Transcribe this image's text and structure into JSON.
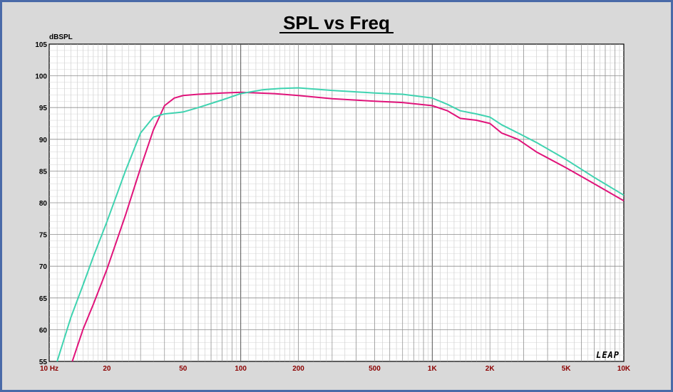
{
  "chart_data": {
    "type": "line",
    "title": "SPL vs Freq",
    "ylabel": "dBSPL",
    "xlabel": "",
    "x_scale": "log",
    "xlim": [
      10,
      10000
    ],
    "ylim": [
      55,
      105
    ],
    "grid": true,
    "y_ticks": [
      55,
      60,
      65,
      70,
      75,
      80,
      85,
      90,
      95,
      100,
      105
    ],
    "x_ticks": [
      {
        "value": 10,
        "label": "10 Hz"
      },
      {
        "value": 20,
        "label": "20"
      },
      {
        "value": 50,
        "label": "50"
      },
      {
        "value": 100,
        "label": "100"
      },
      {
        "value": 200,
        "label": "200"
      },
      {
        "value": 500,
        "label": "500"
      },
      {
        "value": 1000,
        "label": "1K"
      },
      {
        "value": 2000,
        "label": "2K"
      },
      {
        "value": 5000,
        "label": "5K"
      },
      {
        "value": 10000,
        "label": "10K"
      }
    ],
    "logo_text": "LEAP",
    "series": [
      {
        "color": "#e0137a",
        "x": [
          13.2,
          15,
          17,
          20,
          25,
          30,
          35,
          40,
          45,
          50,
          60,
          80,
          100,
          150,
          200,
          300,
          500,
          700,
          1000,
          1200,
          1400,
          1700,
          2000,
          2300,
          2800,
          3500,
          5000,
          7000,
          10000
        ],
        "y": [
          55,
          60,
          64,
          69.5,
          78,
          85.5,
          91.5,
          95.3,
          96.5,
          96.9,
          97.1,
          97.3,
          97.4,
          97.2,
          96.9,
          96.4,
          96,
          95.8,
          95.3,
          94.5,
          93.3,
          93,
          92.5,
          91,
          90,
          88,
          85.5,
          83,
          80.3
        ]
      },
      {
        "color": "#3fd3b0",
        "x": [
          11,
          13,
          15,
          17,
          20,
          25,
          30,
          35,
          40,
          50,
          60,
          80,
          100,
          130,
          160,
          200,
          300,
          500,
          700,
          1000,
          1200,
          1400,
          1700,
          2000,
          2300,
          2800,
          3500,
          5000,
          7000,
          10000
        ],
        "y": [
          55,
          62,
          67,
          71.5,
          77,
          85,
          91,
          93.5,
          94,
          94.3,
          95,
          96.2,
          97.2,
          97.8,
          98,
          98.1,
          97.7,
          97.3,
          97.1,
          96.5,
          95.5,
          94.5,
          94,
          93.5,
          92.3,
          91,
          89.5,
          86.8,
          84,
          81.2
        ]
      }
    ]
  }
}
